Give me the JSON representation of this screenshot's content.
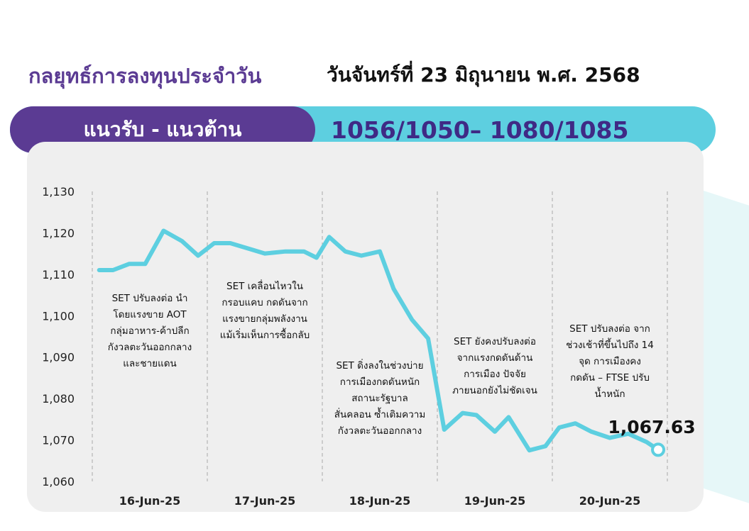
{
  "header": {
    "title": "กลยุทธ์การลงทุนประจำวัน",
    "date": "วันจันทร์ที่ 23 มิถุนายน พ.ศ. 2568"
  },
  "band": {
    "label": "แนวรับ - แนวต้าน",
    "levels": "1056/1050– 1080/1085"
  },
  "colors": {
    "purple": "#5b3b93",
    "cyan": "#5dcfe0",
    "line": "#5dcfe0",
    "panel": "#efefef"
  },
  "chart_data": {
    "type": "line",
    "title": "",
    "xlabel": "",
    "ylabel": "",
    "ylim": [
      1060,
      1130
    ],
    "yticks": [
      1130,
      1120,
      1110,
      1100,
      1090,
      1080,
      1070,
      1060
    ],
    "ytick_labels": [
      "1,130",
      "1,120",
      "1,110",
      "1,100",
      "1,090",
      "1,080",
      "1,070",
      "1,060"
    ],
    "categories": [
      "16-Jun-25",
      "17-Jun-25",
      "18-Jun-25",
      "19-Jun-25",
      "20-Jun-25"
    ],
    "grid": "vertical dashed separators",
    "series": [
      {
        "x": [
          0.06,
          0.18,
          0.32,
          0.46,
          0.62,
          0.78,
          0.92,
          1.06,
          1.2,
          1.38,
          1.5,
          1.68,
          1.84,
          1.95,
          2.06,
          2.2,
          2.34,
          2.5,
          2.62,
          2.78,
          2.92,
          3.06,
          3.22,
          3.34,
          3.5,
          3.62,
          3.8,
          3.94,
          4.06,
          4.2,
          4.34,
          4.5,
          4.66,
          4.82,
          4.92
        ],
        "values": [
          1111,
          1111,
          1112.5,
          1112.5,
          1120.5,
          1118,
          1114.5,
          1117.5,
          1117.5,
          1116,
          1115,
          1115.5,
          1115.5,
          1114,
          1119,
          1115.5,
          1114.5,
          1115.5,
          1106.5,
          1099,
          1094.5,
          1072.5,
          1076.5,
          1076,
          1072,
          1075.5,
          1067.5,
          1068.5,
          1073,
          1074,
          1072,
          1070.5,
          1071.5,
          1069.5,
          1067.63
        ]
      }
    ],
    "last_value_label": "1,067.63",
    "annotations": [
      {
        "day": "16-Jun-25",
        "text": [
          "SET ปรับลงต่อ นำ",
          "โดยแรงขาย AOT",
          "กลุ่มอาหาร-ค้าปลีก",
          "กังวลตะวันออกกลาง",
          "และชายแดน"
        ]
      },
      {
        "day": "17-Jun-25",
        "text": [
          "SET เคลื่อนไหวใน",
          "กรอบแคบ กดดันจาก",
          "แรงขายกลุ่มพลังงาน",
          "แม้เริ่มเห็นการซื้อกลับ"
        ]
      },
      {
        "day": "18-Jun-25",
        "text": [
          "SET ดิ่งลงในช่วงบ่าย",
          "การเมืองกดดันหนัก",
          "สถานะรัฐบาล",
          "สั่นคลอน ซ้ำเติมความ",
          "กังวลตะวันออกกลาง"
        ]
      },
      {
        "day": "19-Jun-25",
        "text": [
          "SET ยังคงปรับลงต่อ",
          "จากแรงกดดันด้าน",
          "การเมือง ปัจจัย",
          "ภายนอกยังไม่ชัดเจน"
        ]
      },
      {
        "day": "20-Jun-25",
        "text": [
          "SET ปรับลงต่อ จาก",
          "ช่วงเช้าที่ขึ้นไปถึง 14",
          "จุด การเมืองคง",
          "กดดัน – FTSE ปรับ",
          "น้ำหนัก"
        ]
      }
    ]
  }
}
